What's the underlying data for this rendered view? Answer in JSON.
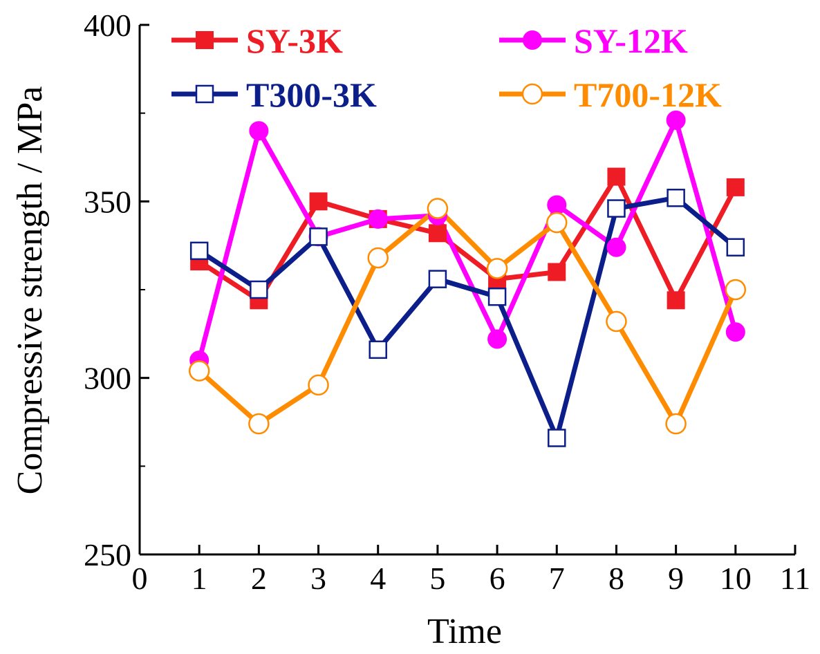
{
  "chart_data": {
    "type": "line",
    "title": "",
    "xlabel": "Time",
    "ylabel": "Compressive strength / MPa",
    "xlim": [
      0,
      11
    ],
    "ylim": [
      250,
      400
    ],
    "xticks": [
      0,
      1,
      2,
      3,
      4,
      5,
      6,
      7,
      8,
      9,
      10,
      11
    ],
    "yticks": [
      250,
      300,
      350,
      400
    ],
    "x": [
      1,
      2,
      3,
      4,
      5,
      6,
      7,
      8,
      9,
      10
    ],
    "grid": false,
    "legend_position": "top",
    "series": [
      {
        "name": "SY-3K",
        "color": "#ee1c24",
        "marker": "square-filled",
        "values": [
          333,
          322,
          350,
          345,
          341,
          328,
          330,
          357,
          322,
          354
        ]
      },
      {
        "name": "SY-12K",
        "color": "#ff00ff",
        "marker": "circle-filled",
        "values": [
          305,
          370,
          340,
          345,
          346,
          311,
          349,
          337,
          373,
          313
        ]
      },
      {
        "name": "T300-3K",
        "color": "#0c1e8a",
        "marker": "square-open",
        "values": [
          336,
          325,
          340,
          308,
          328,
          323,
          283,
          348,
          351,
          337
        ]
      },
      {
        "name": "T700-12K",
        "color": "#ff8c00",
        "marker": "circle-open",
        "values": [
          302,
          287,
          298,
          334,
          348,
          331,
          344,
          316,
          287,
          325
        ]
      }
    ]
  }
}
